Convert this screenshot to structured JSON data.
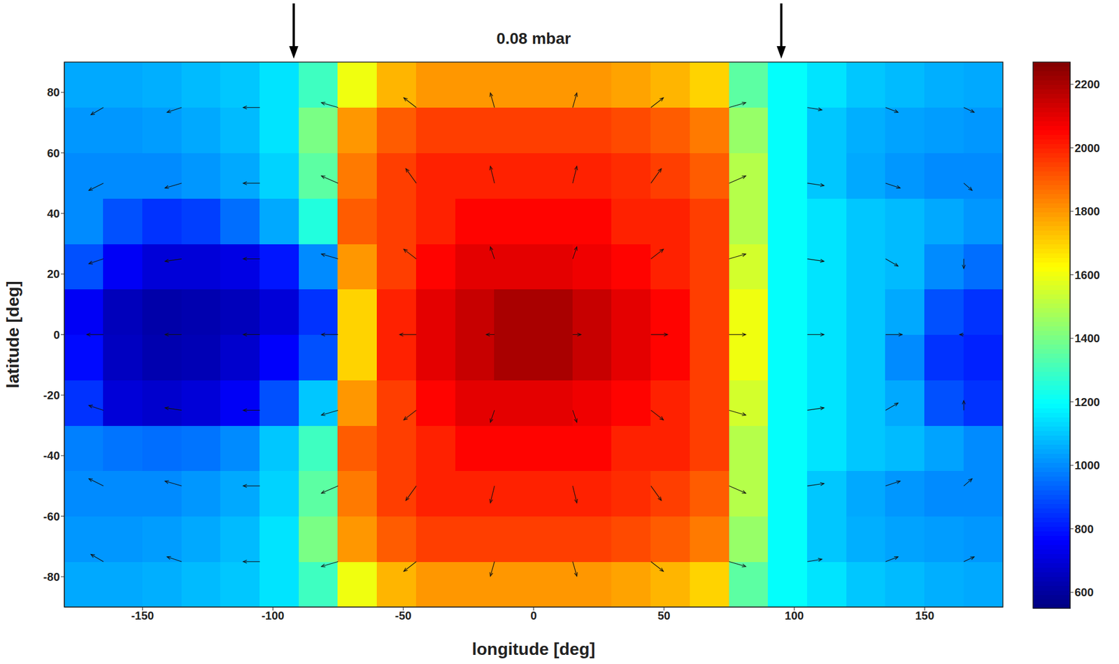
{
  "chart_data": {
    "type": "heatmap",
    "title": "0.08 mbar",
    "x_label": "longitude [deg]",
    "y_label": "latitude [deg]",
    "xlim": [
      -180,
      180
    ],
    "ylim": [
      -90,
      90
    ],
    "xticks": [
      -150,
      -100,
      -50,
      0,
      50,
      100,
      150
    ],
    "yticks": [
      -80,
      -60,
      -40,
      -20,
      0,
      20,
      40,
      60,
      80
    ],
    "cells": {
      "x": [
        -172.5,
        -157.5,
        -142.5,
        -127.5,
        -112.5,
        -97.5,
        -82.5,
        -67.5,
        -52.5,
        -37.5,
        -22.5,
        -7.5,
        7.5,
        22.5,
        37.5,
        52.5,
        67.5,
        82.5,
        97.5,
        112.5,
        127.5,
        142.5,
        157.5,
        172.5
      ],
      "y": [
        -82.5,
        -67.5,
        -52.5,
        -37.5,
        -22.5,
        -7.5,
        7.5,
        22.5,
        37.5,
        52.5,
        67.5,
        82.5
      ],
      "values": [
        [
          1050,
          1050,
          1060,
          1080,
          1100,
          1150,
          1300,
          1600,
          1750,
          1800,
          1800,
          1800,
          1800,
          1800,
          1780,
          1750,
          1700,
          1350,
          1200,
          1150,
          1100,
          1080,
          1060,
          1050
        ],
        [
          1020,
          1020,
          1030,
          1050,
          1080,
          1150,
          1400,
          1800,
          1900,
          1950,
          1950,
          1950,
          1950,
          1950,
          1930,
          1900,
          1850,
          1450,
          1200,
          1100,
          1060,
          1040,
          1030,
          1020
        ],
        [
          1000,
          1000,
          1000,
          1020,
          1050,
          1120,
          1350,
          1850,
          1950,
          2000,
          2000,
          2000,
          2000,
          2000,
          1980,
          1950,
          1900,
          1500,
          1200,
          1100,
          1050,
          1020,
          1000,
          1000
        ],
        [
          980,
          960,
          950,
          960,
          1000,
          1100,
          1300,
          1900,
          1950,
          2000,
          2050,
          2050,
          2050,
          2050,
          2000,
          2000,
          1950,
          1500,
          1200,
          1150,
          1100,
          1080,
          1040,
          1000
        ],
        [
          850,
          700,
          680,
          700,
          750,
          900,
          1100,
          1800,
          1950,
          2050,
          2100,
          2100,
          2100,
          2080,
          2050,
          2000,
          1950,
          1550,
          1200,
          1150,
          1100,
          1050,
          900,
          850
        ],
        [
          780,
          660,
          630,
          640,
          680,
          760,
          900,
          1700,
          2000,
          2100,
          2150,
          2200,
          2200,
          2150,
          2100,
          2050,
          1950,
          1600,
          1200,
          1150,
          1100,
          1000,
          850,
          820
        ],
        [
          750,
          650,
          620,
          630,
          650,
          700,
          850,
          1700,
          2000,
          2100,
          2150,
          2200,
          2200,
          2150,
          2100,
          2050,
          1950,
          1600,
          1200,
          1150,
          1100,
          1050,
          900,
          850
        ],
        [
          900,
          750,
          700,
          700,
          720,
          800,
          1000,
          1800,
          1950,
          2050,
          2100,
          2100,
          2100,
          2080,
          2050,
          2000,
          1950,
          1550,
          1200,
          1150,
          1100,
          1080,
          1000,
          950
        ],
        [
          1000,
          900,
          850,
          870,
          950,
          1050,
          1250,
          1900,
          1950,
          2000,
          2050,
          2050,
          2050,
          2050,
          2000,
          2000,
          1950,
          1500,
          1200,
          1150,
          1100,
          1080,
          1050,
          1020
        ],
        [
          1000,
          1000,
          1000,
          1020,
          1050,
          1120,
          1350,
          1850,
          1950,
          2000,
          2000,
          2000,
          2000,
          2000,
          1980,
          1950,
          1900,
          1500,
          1200,
          1100,
          1050,
          1020,
          1000,
          1000
        ],
        [
          1020,
          1020,
          1030,
          1050,
          1080,
          1150,
          1400,
          1800,
          1900,
          1950,
          1950,
          1950,
          1950,
          1950,
          1930,
          1900,
          1850,
          1450,
          1200,
          1100,
          1060,
          1040,
          1030,
          1020
        ],
        [
          1050,
          1050,
          1060,
          1080,
          1100,
          1150,
          1300,
          1600,
          1750,
          1800,
          1800,
          1800,
          1800,
          1800,
          1780,
          1750,
          1700,
          1350,
          1200,
          1150,
          1100,
          1080,
          1060,
          1050
        ]
      ]
    },
    "colorbar": {
      "range": [
        550,
        2270
      ],
      "ticks": [
        600,
        800,
        1000,
        1200,
        1400,
        1600,
        1800,
        2000,
        2200
      ]
    },
    "vectors": {
      "x": [
        -165,
        -135,
        -105,
        -75,
        -45,
        -15,
        15,
        45,
        75,
        105,
        135,
        165
      ],
      "y": [
        -75,
        -50,
        -25,
        0,
        25,
        50,
        75
      ],
      "u": [
        [
          -3,
          -3.5,
          -4,
          -4,
          -3,
          -1,
          1,
          3,
          4,
          3.5,
          3,
          2.5
        ],
        [
          -3.5,
          -4,
          -4,
          -4,
          -2.5,
          -1,
          1,
          2.5,
          4,
          4,
          3.5,
          2
        ],
        [
          -3.5,
          -4,
          -4,
          -4,
          -3,
          -1,
          1,
          3,
          4,
          4,
          3,
          0
        ],
        [
          -4,
          -4,
          -4,
          -4,
          -4,
          -2,
          2,
          4,
          4,
          4,
          4,
          -1
        ],
        [
          -3.5,
          -4,
          -4,
          -4,
          -3,
          -1,
          1,
          3,
          4,
          4,
          3,
          0
        ],
        [
          -3.5,
          -4,
          -4,
          -4,
          -2.5,
          -1,
          1,
          2.5,
          4,
          4,
          3.5,
          2
        ],
        [
          -3,
          -3.5,
          -4,
          -4,
          -3,
          -1,
          1,
          3,
          4,
          3.5,
          3,
          2.5
        ]
      ],
      "v": [
        [
          1.5,
          1,
          0,
          -1,
          -2,
          -3,
          -3,
          -2,
          -1,
          0.5,
          1,
          1
        ],
        [
          1.5,
          1,
          0,
          -1.5,
          -3,
          -3.5,
          -3.5,
          -3,
          -1.5,
          0.5,
          1,
          1.5
        ],
        [
          1,
          0.5,
          0,
          -1,
          -2,
          -2.5,
          -2.5,
          -2,
          -1,
          0.5,
          1.5,
          2
        ],
        [
          0,
          0,
          0,
          0,
          0,
          0,
          0,
          0,
          0,
          0,
          0,
          0
        ],
        [
          -1,
          -0.5,
          0,
          1,
          2,
          2.5,
          2.5,
          2,
          1,
          -0.5,
          -1.5,
          -2
        ],
        [
          -1.5,
          -1,
          0,
          1.5,
          3,
          3.5,
          3.5,
          3,
          1.5,
          -0.5,
          -1,
          -1.5
        ],
        [
          -1.5,
          -1,
          0,
          1,
          2,
          3,
          3,
          2,
          1,
          -0.5,
          -1,
          -1
        ]
      ]
    },
    "arrow_marks": [
      -92,
      95
    ]
  }
}
